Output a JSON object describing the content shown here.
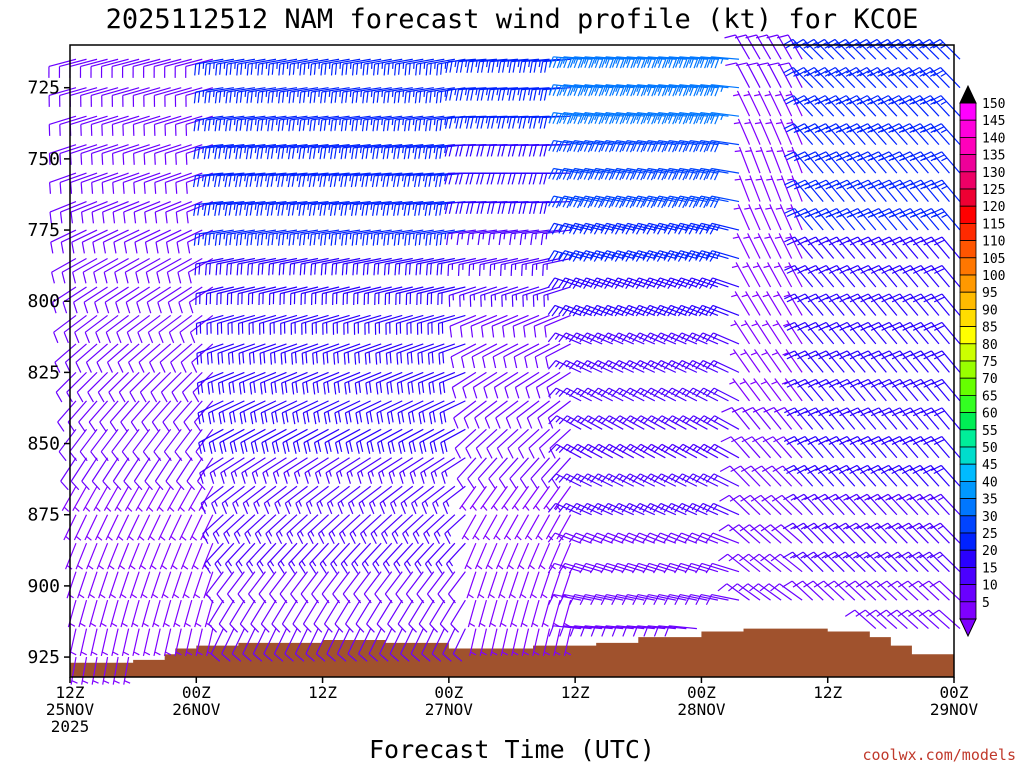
{
  "chart_data": {
    "type": "wind-barb-profile",
    "title": "2025112512 NAM forecast wind profile (kt) for KCOE",
    "xlabel": "Forecast Time (UTC)",
    "ylabel": "",
    "units": "kt",
    "x_range_hours": [
      0,
      84
    ],
    "y_range_hPa": [
      710,
      932
    ],
    "y_ticks": [
      725,
      750,
      775,
      800,
      825,
      850,
      875,
      900,
      925
    ],
    "x_ticks": [
      {
        "hour": 0,
        "lines": [
          "12Z",
          "25NOV",
          "2025"
        ]
      },
      {
        "hour": 12,
        "lines": [
          "00Z",
          "26NOV"
        ]
      },
      {
        "hour": 24,
        "lines": [
          "12Z"
        ]
      },
      {
        "hour": 36,
        "lines": [
          "00Z",
          "27NOV"
        ]
      },
      {
        "hour": 48,
        "lines": [
          "12Z"
        ]
      },
      {
        "hour": 60,
        "lines": [
          "00Z",
          "28NOV"
        ]
      },
      {
        "hour": 72,
        "lines": [
          "12Z"
        ]
      },
      {
        "hour": 84,
        "lines": [
          "00Z",
          "29NOV"
        ]
      }
    ],
    "colorbar": {
      "levels": [
        5,
        10,
        15,
        20,
        25,
        30,
        35,
        40,
        45,
        50,
        55,
        60,
        65,
        70,
        75,
        80,
        85,
        90,
        95,
        100,
        105,
        110,
        115,
        120,
        125,
        130,
        135,
        140,
        145,
        150
      ],
      "colors": [
        "#7f00ff",
        "#6a00ff",
        "#4b00ff",
        "#2a00ff",
        "#0022ff",
        "#0044ff",
        "#0077ff",
        "#0099ff",
        "#00bbff",
        "#00ddcc",
        "#00ee99",
        "#00ee55",
        "#33ff22",
        "#66ff00",
        "#99ff00",
        "#ccff00",
        "#ffff00",
        "#ffdd00",
        "#ffbb00",
        "#ff9900",
        "#ff7700",
        "#ff5500",
        "#ff2a00",
        "#ff0000",
        "#ee0033",
        "#ee0066",
        "#ee0099",
        "#ff00bb",
        "#ff00dd",
        "#ff00ff"
      ]
    },
    "terrain_surface_hPa": [
      [
        0,
        927
      ],
      [
        6,
        926
      ],
      [
        9,
        924
      ],
      [
        10,
        922
      ],
      [
        12,
        921
      ],
      [
        16,
        920
      ],
      [
        24,
        919
      ],
      [
        30,
        920
      ],
      [
        36,
        922
      ],
      [
        40,
        922
      ],
      [
        44,
        921
      ],
      [
        48,
        921
      ],
      [
        50,
        920
      ],
      [
        54,
        918
      ],
      [
        60,
        916
      ],
      [
        64,
        915
      ],
      [
        68,
        915
      ],
      [
        72,
        916
      ],
      [
        76,
        918
      ],
      [
        78,
        921
      ],
      [
        80,
        924
      ],
      [
        84,
        925
      ]
    ],
    "wind_regime": [
      {
        "hours": [
          0,
          14
        ],
        "levels": [
          {
            "p": 715,
            "dir": 255,
            "spd": 10
          },
          {
            "p": 760,
            "dir": 250,
            "spd": 10
          },
          {
            "p": 800,
            "dir": 235,
            "spd": 10
          },
          {
            "p": 850,
            "dir": 215,
            "spd": 8
          },
          {
            "p": 890,
            "dir": 200,
            "spd": 6
          },
          {
            "p": 925,
            "dir": 190,
            "spd": 5
          }
        ]
      },
      {
        "hours": [
          14,
          38
        ],
        "levels": [
          {
            "p": 715,
            "dir": 260,
            "spd": 25
          },
          {
            "p": 760,
            "dir": 265,
            "spd": 25
          },
          {
            "p": 800,
            "dir": 255,
            "spd": 20
          },
          {
            "p": 850,
            "dir": 240,
            "spd": 18
          },
          {
            "p": 890,
            "dir": 220,
            "spd": 12
          },
          {
            "p": 925,
            "dir": 200,
            "spd": 8
          }
        ]
      },
      {
        "hours": [
          38,
          48
        ],
        "levels": [
          {
            "p": 715,
            "dir": 265,
            "spd": 25
          },
          {
            "p": 760,
            "dir": 270,
            "spd": 20
          },
          {
            "p": 800,
            "dir": 250,
            "spd": 12
          },
          {
            "p": 850,
            "dir": 225,
            "spd": 8
          },
          {
            "p": 890,
            "dir": 200,
            "spd": 6
          },
          {
            "p": 925,
            "dir": 190,
            "spd": 5
          }
        ]
      },
      {
        "hours": [
          48,
          64
        ],
        "levels": [
          {
            "p": 715,
            "dir": 275,
            "spd": 35
          },
          {
            "p": 760,
            "dir": 280,
            "spd": 30
          },
          {
            "p": 800,
            "dir": 290,
            "spd": 18
          },
          {
            "p": 850,
            "dir": 300,
            "spd": 15
          },
          {
            "p": 890,
            "dir": 290,
            "spd": 12
          },
          {
            "p": 925,
            "dir": 270,
            "spd": 8
          }
        ]
      },
      {
        "hours": [
          64,
          70
        ],
        "levels": [
          {
            "p": 715,
            "dir": 330,
            "spd": 8
          },
          {
            "p": 760,
            "dir": 340,
            "spd": 6
          },
          {
            "p": 800,
            "dir": 330,
            "spd": 6
          },
          {
            "p": 850,
            "dir": 320,
            "spd": 8
          },
          {
            "p": 890,
            "dir": 310,
            "spd": 10
          },
          {
            "p": 925,
            "dir": 300,
            "spd": 6
          }
        ]
      },
      {
        "hours": [
          70,
          84
        ],
        "levels": [
          {
            "p": 715,
            "dir": 315,
            "spd": 25
          },
          {
            "p": 760,
            "dir": 320,
            "spd": 25
          },
          {
            "p": 800,
            "dir": 320,
            "spd": 20
          },
          {
            "p": 850,
            "dir": 320,
            "spd": 20
          },
          {
            "p": 890,
            "dir": 315,
            "spd": 15
          },
          {
            "p": 925,
            "dir": 310,
            "spd": 8
          }
        ]
      }
    ],
    "credit": "coolwx.com/models"
  }
}
